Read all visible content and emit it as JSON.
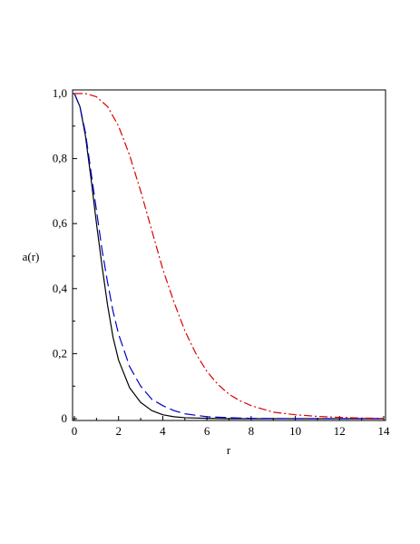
{
  "chart_data": {
    "type": "line",
    "title": "",
    "xlabel": "r",
    "ylabel": "a(r)",
    "xlim": [
      0,
      14
    ],
    "ylim": [
      0,
      1
    ],
    "grid": false,
    "legend": "none",
    "x_ticks": [
      0,
      2,
      4,
      6,
      8,
      10,
      12,
      14
    ],
    "x_tick_labels": [
      "0",
      "2",
      "4",
      "6",
      "8",
      "10",
      "12",
      "14"
    ],
    "y_ticks": [
      0,
      0.2,
      0.4,
      0.6,
      0.8,
      1.0
    ],
    "y_tick_labels": [
      "0",
      "0,2",
      "0,4",
      "0,6",
      "0,8",
      "1,0"
    ],
    "series": [
      {
        "color": "#000000",
        "style": "solid",
        "x": [
          0,
          0.25,
          0.5,
          0.75,
          1,
          1.25,
          1.5,
          1.75,
          2,
          2.5,
          3,
          3.5,
          4,
          4.5,
          5,
          6,
          7,
          8,
          10,
          12,
          14
        ],
        "y": [
          1.0,
          0.96,
          0.87,
          0.74,
          0.6,
          0.47,
          0.35,
          0.25,
          0.18,
          0.095,
          0.05,
          0.025,
          0.012,
          0.006,
          0.003,
          0.001,
          0.0,
          0.0,
          0.0,
          0.0,
          0.0
        ]
      },
      {
        "color": "#0000cc",
        "style": "dashed",
        "x": [
          0,
          0.25,
          0.5,
          0.75,
          1,
          1.25,
          1.5,
          1.75,
          2,
          2.5,
          3,
          3.5,
          4,
          4.5,
          5,
          6,
          7,
          8,
          10,
          12,
          14
        ],
        "y": [
          1.0,
          0.96,
          0.88,
          0.76,
          0.64,
          0.52,
          0.42,
          0.33,
          0.26,
          0.16,
          0.1,
          0.06,
          0.04,
          0.025,
          0.015,
          0.006,
          0.003,
          0.001,
          0.0,
          0.0,
          0.0
        ]
      },
      {
        "color": "#dd0000",
        "style": "dashdot",
        "x": [
          0,
          0.5,
          1,
          1.5,
          2,
          2.5,
          3,
          3.5,
          4,
          4.5,
          5,
          5.5,
          6,
          6.5,
          7,
          7.5,
          8,
          9,
          10,
          11,
          12,
          13,
          14
        ],
        "y": [
          1.0,
          1.0,
          0.99,
          0.96,
          0.9,
          0.81,
          0.7,
          0.58,
          0.46,
          0.36,
          0.27,
          0.2,
          0.145,
          0.105,
          0.075,
          0.055,
          0.04,
          0.02,
          0.012,
          0.007,
          0.004,
          0.002,
          0.001
        ]
      }
    ]
  }
}
